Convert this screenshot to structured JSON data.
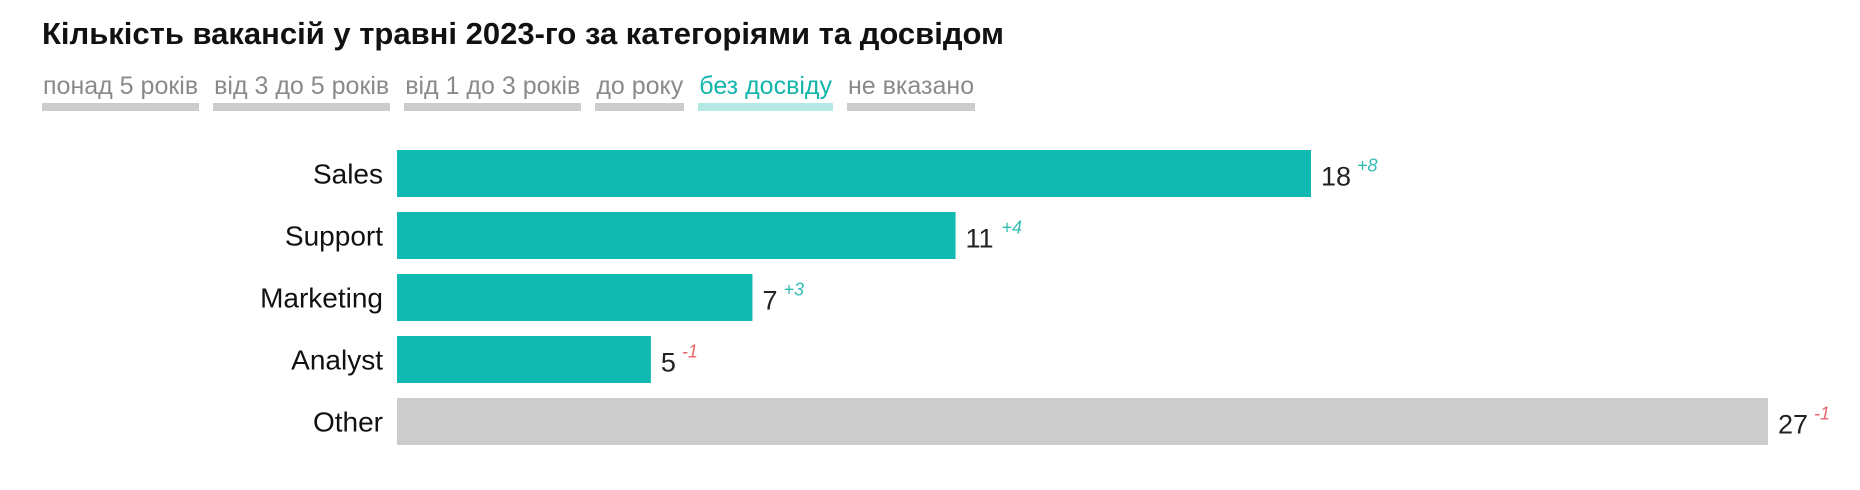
{
  "header": {
    "title": "Кількість вакансій у травні 2023-го за категоріями та досвідом"
  },
  "tabs": [
    {
      "label": "понад 5 років",
      "active": false
    },
    {
      "label": "від 3 до 5 років",
      "active": false
    },
    {
      "label": "від 1 до 3 років",
      "active": false
    },
    {
      "label": "до року",
      "active": false
    },
    {
      "label": "без досвіду",
      "active": true
    },
    {
      "label": "не вказано",
      "active": false
    }
  ],
  "colors": {
    "accent": "#10bab1",
    "other": "#cccccc",
    "positive": "#35bdb4",
    "negative": "#e8666a"
  },
  "chart_data": {
    "type": "bar",
    "orientation": "horizontal",
    "categories": [
      "Sales",
      "Support",
      "Marketing",
      "Analyst",
      "Other"
    ],
    "values": [
      18,
      11,
      7,
      5,
      27
    ],
    "deltas": [
      "+8",
      "+4",
      "+3",
      "-1",
      "-1"
    ],
    "xlim": [
      0,
      27
    ],
    "grid": false,
    "legend": "none"
  }
}
